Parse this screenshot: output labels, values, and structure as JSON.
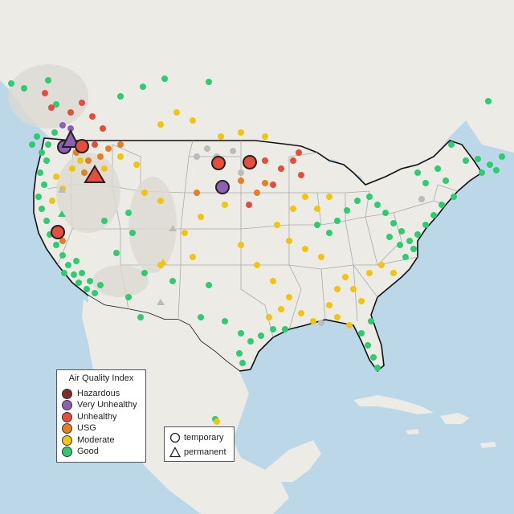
{
  "map": {
    "colors": {
      "water": "#bcd7e8",
      "land": "#ecebe6",
      "mountains": "#dcdad3",
      "forest": "#cfd8c4",
      "state_border": "#aaaaaa",
      "country_border": "#111111"
    }
  },
  "aqi_legend": {
    "title": "Air Quality Index",
    "categories": [
      {
        "label": "Hazardous",
        "color": "#7e2b2b"
      },
      {
        "label": "Very Unhealthy",
        "color": "#8e5fb3"
      },
      {
        "label": "Unhealthy",
        "color": "#e74c3c"
      },
      {
        "label": "USG",
        "color": "#e67e22"
      },
      {
        "label": "Moderate",
        "color": "#f1c40f"
      },
      {
        "label": "Good",
        "color": "#2ecc71"
      }
    ]
  },
  "site_legend": {
    "items": [
      {
        "label": "temporary",
        "shape": "circle"
      },
      {
        "label": "permanent",
        "shape": "triangle"
      }
    ]
  },
  "highlighted_sites": [
    {
      "category": "Very Unhealthy",
      "type": "permanent",
      "region": "northern Idaho"
    },
    {
      "category": "Very Unhealthy",
      "type": "temporary",
      "region": "northern Idaho"
    },
    {
      "category": "Unhealthy",
      "type": "temporary",
      "region": "northern Idaho"
    },
    {
      "category": "Unhealthy",
      "type": "temporary",
      "region": "western Montana"
    },
    {
      "category": "Unhealthy",
      "type": "permanent",
      "region": "western Montana"
    },
    {
      "category": "Unhealthy",
      "type": "temporary",
      "region": "North Dakota"
    },
    {
      "category": "Unhealthy",
      "type": "temporary",
      "region": "North Dakota"
    },
    {
      "category": "Very Unhealthy",
      "type": "temporary",
      "region": "South Dakota"
    },
    {
      "category": "Unhealthy",
      "type": "temporary",
      "region": "northern California"
    }
  ]
}
